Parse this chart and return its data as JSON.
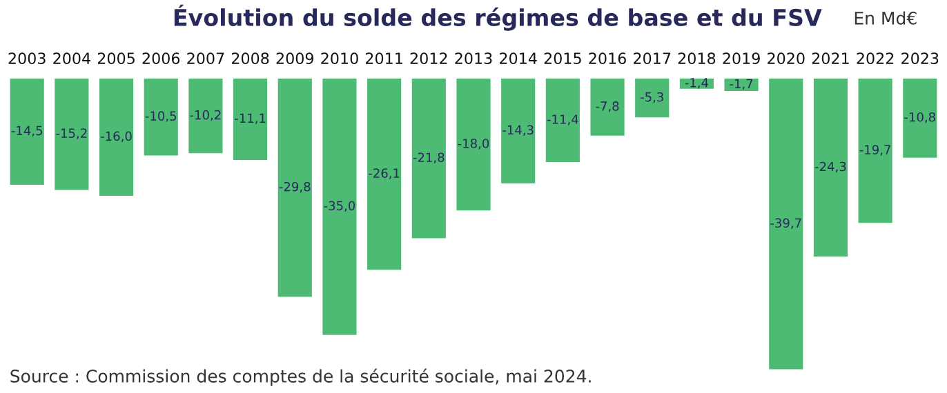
{
  "chart_data": {
    "type": "bar",
    "title": "Évolution du solde des régimes de base et du FSV",
    "subtitle": "En Md€",
    "categories": [
      "2003",
      "2004",
      "2005",
      "2006",
      "2007",
      "2008",
      "2009",
      "2010",
      "2011",
      "2012",
      "2013",
      "2014",
      "2015",
      "2016",
      "2017",
      "2018",
      "2019",
      "2020",
      "2021",
      "2022",
      "2023"
    ],
    "values": [
      -14.5,
      -15.2,
      -16.0,
      -10.5,
      -10.2,
      -11.1,
      -29.8,
      -35.0,
      -26.1,
      -21.8,
      -18.0,
      -14.3,
      -11.4,
      -7.8,
      -5.3,
      -1.4,
      -1.7,
      -39.7,
      -24.3,
      -19.7,
      -10.8
    ],
    "value_labels": [
      "-14,5",
      "-15,2",
      "-16,0",
      "-10,5",
      "-10,2",
      "-11,1",
      "-29,8",
      "-35,0",
      "-26,1",
      "-21,8",
      "-18,0",
      "-14,3",
      "-11,4",
      "-7,8",
      "-5,3",
      "-1,4",
      "-1,7",
      "-39,7",
      "-24,3",
      "-19,7",
      "-10,8"
    ],
    "color": "#4dbb74",
    "tick_labels": "x",
    "grid": false,
    "legend": false,
    "annotations": [
      "Source : Commission des comptes de la sécurité sociale, mai 2024."
    ]
  }
}
